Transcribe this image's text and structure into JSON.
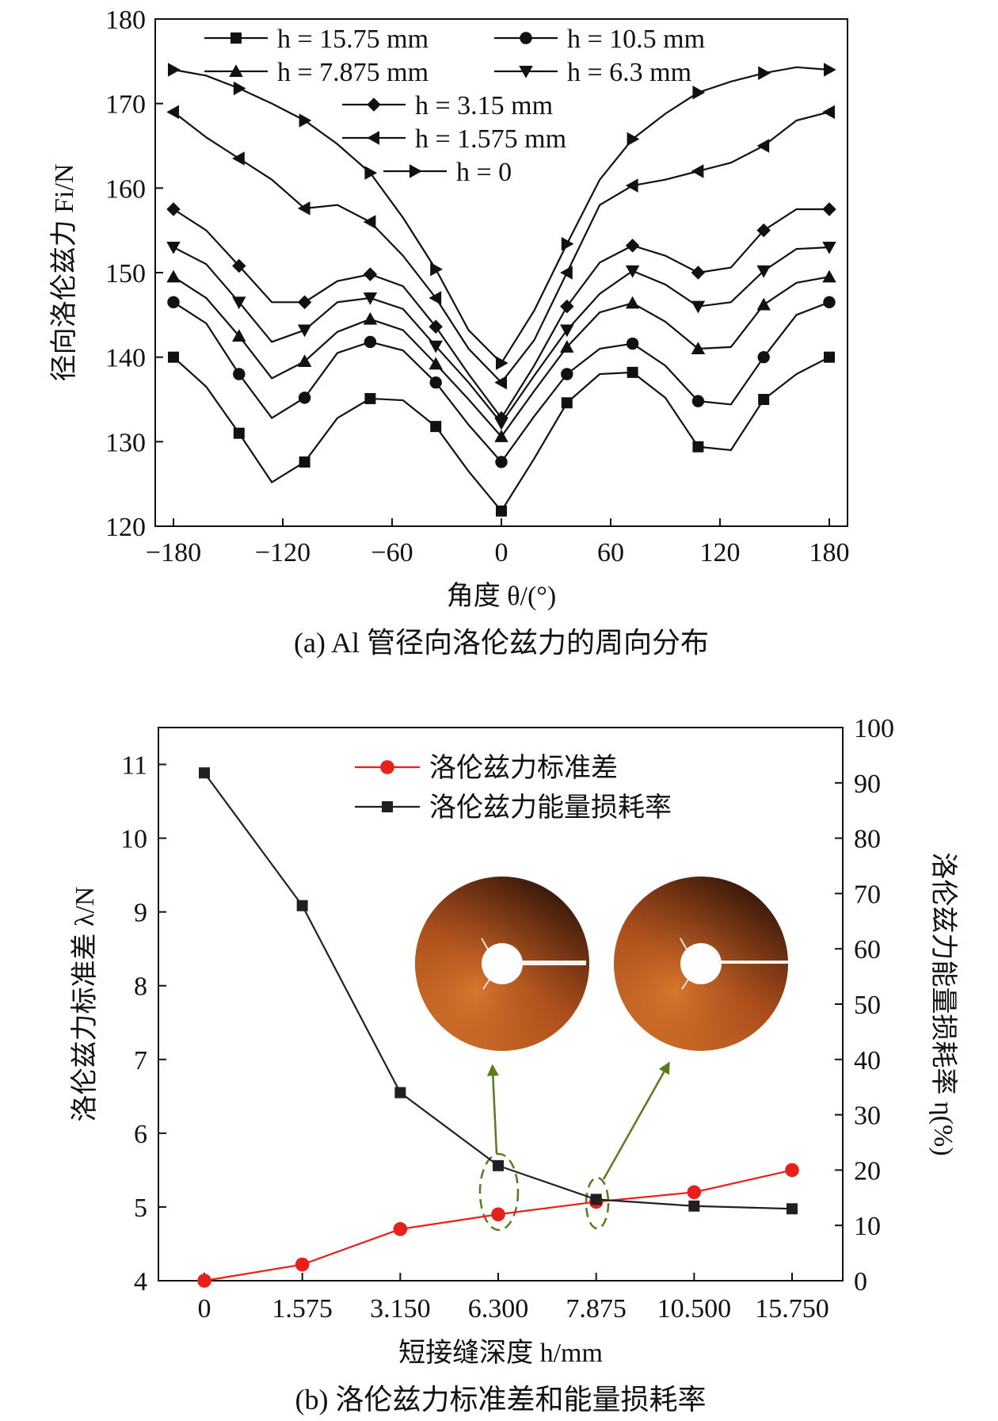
{
  "chart_data": [
    {
      "type": "line",
      "caption": "(a) Al 管径向洛伦兹力的周向分布",
      "xlabel": "角度 θ/(°)",
      "ylabel": "径向洛伦兹力 Fi/N",
      "xlim": [
        -190,
        190
      ],
      "ylim": [
        120,
        180
      ],
      "xticks": [
        -180,
        -120,
        -60,
        0,
        60,
        120,
        180
      ],
      "xtick_labels": [
        "−180",
        "−120",
        "−60",
        "0",
        "60",
        "120",
        "180"
      ],
      "yticks": [
        120,
        130,
        140,
        150,
        160,
        170,
        180
      ],
      "x": [
        -180,
        -162,
        -144,
        -126,
        -108,
        -90,
        -72,
        -54,
        -36,
        -18,
        0,
        18,
        36,
        54,
        72,
        90,
        108,
        126,
        144,
        162,
        180
      ],
      "series": [
        {
          "name": "h = 15.75 mm",
          "marker": "square",
          "values": [
            140,
            136.5,
            131,
            125.2,
            127.6,
            132.8,
            135.1,
            134.9,
            131.8,
            126.5,
            121.8,
            128,
            134.6,
            138,
            138.2,
            135.2,
            129.4,
            129,
            135,
            138,
            140
          ]
        },
        {
          "name": "h = 10.5 mm",
          "marker": "circle",
          "values": [
            146.5,
            144,
            138,
            132.8,
            135.2,
            140.5,
            141.8,
            140.8,
            137,
            132,
            127.6,
            133,
            138,
            141,
            141.6,
            139,
            134.8,
            134.4,
            140,
            145,
            146.5
          ]
        },
        {
          "name": "h = 7.875 mm",
          "marker": "triangle-up",
          "values": [
            149.5,
            147,
            142.5,
            137.5,
            139.5,
            143,
            144.5,
            143.2,
            139.2,
            135,
            130.6,
            136,
            141.2,
            145.3,
            146.4,
            144.2,
            141,
            141.2,
            146.2,
            148.8,
            149.5
          ]
        },
        {
          "name": "h = 6.3 mm",
          "marker": "triangle-down",
          "values": [
            153,
            151,
            146.5,
            141.8,
            143.2,
            146.5,
            147,
            145.7,
            141.3,
            137,
            132.2,
            137.8,
            143.2,
            147.5,
            150.2,
            148.6,
            146,
            146.5,
            150.2,
            152.8,
            153
          ]
        },
        {
          "name": "h = 3.15 mm",
          "marker": "diamond",
          "values": [
            157.5,
            155,
            150.8,
            146.5,
            146.5,
            149,
            149.8,
            148.4,
            143.6,
            138,
            132.8,
            139,
            146,
            151.2,
            153.2,
            152,
            150,
            150.6,
            155,
            157.5,
            157.5
          ]
        },
        {
          "name": "h = 1.575 mm",
          "marker": "triangle-left",
          "values": [
            169,
            166,
            163.5,
            161,
            157.6,
            158,
            156,
            152,
            147,
            141,
            137,
            142,
            150,
            158,
            160.3,
            161,
            162,
            163,
            165,
            168,
            169
          ]
        },
        {
          "name": "h = 0",
          "marker": "triangle-right",
          "values": [
            174,
            173.3,
            171.8,
            170,
            168,
            165.2,
            161.8,
            156.5,
            150.4,
            143.2,
            139.3,
            145.5,
            153.4,
            161,
            165.8,
            168.8,
            171.3,
            172.6,
            173.6,
            174.3,
            174
          ]
        }
      ]
    },
    {
      "type": "line",
      "caption": "(b) 洛伦兹力标准差和能量损耗率",
      "xlabel": "短接缝深度 h/mm",
      "ylabel_left": "洛伦兹力标准差 λ/N",
      "ylabel_right": "洛伦兹力能量损耗率 η(%)",
      "categories": [
        "0",
        "1.575",
        "3.150",
        "6.300",
        "7.875",
        "10.500",
        "15.750"
      ],
      "ylim_left": [
        4,
        11.5
      ],
      "ylim_right": [
        0,
        100
      ],
      "yticks_left": [
        4,
        5,
        6,
        7,
        8,
        9,
        10,
        11
      ],
      "yticks_right": [
        0,
        10,
        20,
        30,
        40,
        50,
        60,
        70,
        80,
        90,
        100
      ],
      "series": [
        {
          "name": "洛伦兹力标准差",
          "axis": "left",
          "color": "#e8201c",
          "marker": "circle",
          "values": [
            4.0,
            4.22,
            4.7,
            4.9,
            5.07,
            5.2,
            5.5
          ]
        },
        {
          "name": "洛伦兹力能量损耗率",
          "axis": "right",
          "color": "#231f20",
          "marker": "square",
          "values": [
            91.8,
            67.8,
            34,
            20.8,
            14.7,
            13.5,
            13
          ]
        }
      ],
      "legend_position": "top-center",
      "accent_colors": {
        "annotation": "#5a7a1e",
        "disk": "#c2531a"
      }
    }
  ]
}
